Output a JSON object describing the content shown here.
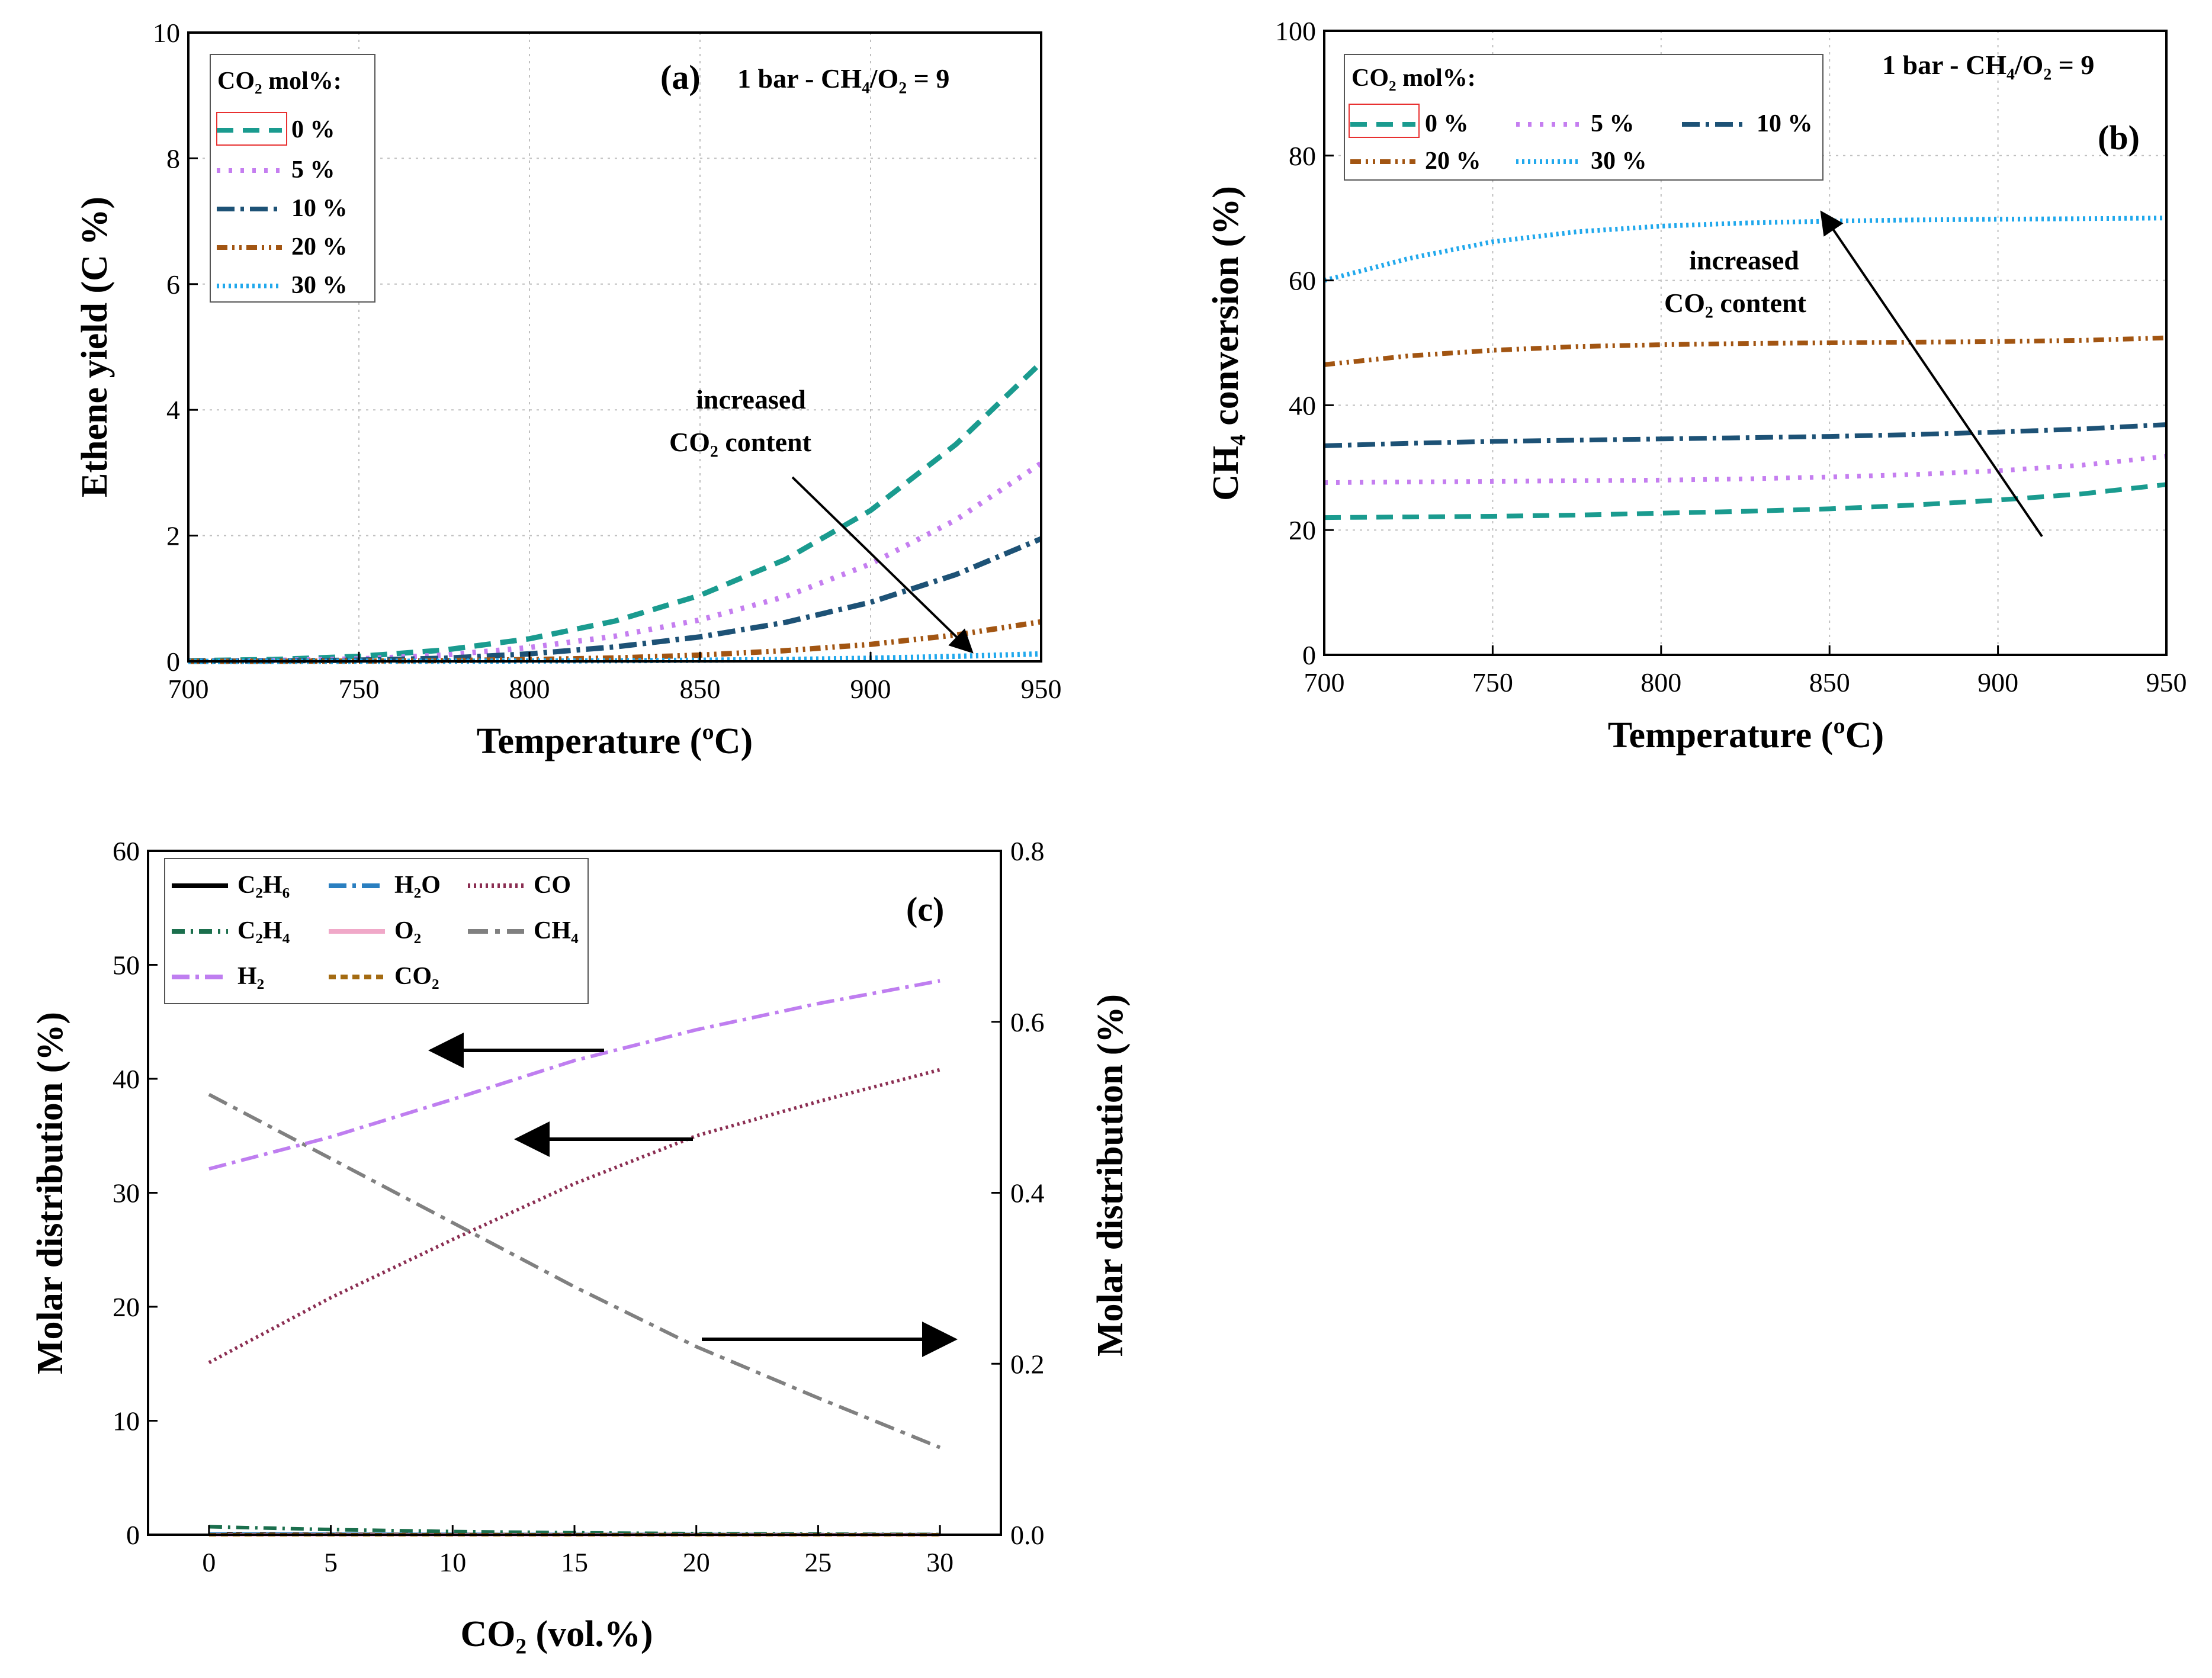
{
  "chart_data": [
    {
      "id": "a",
      "type": "line",
      "panel_label": "(a)",
      "condition": "1 bar - CH₄/O₂ = 9",
      "xlabel": "Temperature (ºC)",
      "ylabel": "Ethene yield (C %)",
      "xlim": [
        700,
        950
      ],
      "ylim": [
        0,
        10
      ],
      "xticks": [
        700,
        750,
        800,
        850,
        900,
        950
      ],
      "yticks": [
        0,
        2,
        4,
        6,
        8,
        10
      ],
      "grid": true,
      "legend_title": "CO₂ mol%:",
      "legend_position": "top-left",
      "annotation": [
        "increased",
        "CO₂ content"
      ],
      "x": [
        700,
        725,
        750,
        775,
        800,
        825,
        850,
        875,
        900,
        925,
        950
      ],
      "series": [
        {
          "name": "0 %",
          "color": "#1a9b8f",
          "dash": "28 16",
          "values": [
            0.01,
            0.03,
            0.08,
            0.18,
            0.36,
            0.64,
            1.05,
            1.62,
            2.4,
            3.45,
            4.75
          ]
        },
        {
          "name": "5 %",
          "color": "#c57ef0",
          "dash": "6 14",
          "values": [
            0.005,
            0.015,
            0.04,
            0.1,
            0.22,
            0.4,
            0.66,
            1.03,
            1.55,
            2.25,
            3.15
          ]
        },
        {
          "name": "10 %",
          "color": "#1d5276",
          "dash": "30 10 6 10",
          "values": [
            0.003,
            0.008,
            0.02,
            0.05,
            0.12,
            0.23,
            0.39,
            0.62,
            0.94,
            1.38,
            1.95
          ]
        },
        {
          "name": "20 %",
          "color": "#a25512",
          "dash": "18 8 4 8 4 8",
          "values": [
            0.001,
            0.002,
            0.005,
            0.012,
            0.028,
            0.055,
            0.1,
            0.17,
            0.27,
            0.42,
            0.63
          ]
        },
        {
          "name": "30 %",
          "color": "#20a8ec",
          "dash": "4 6",
          "values": [
            0.0,
            0.001,
            0.002,
            0.003,
            0.006,
            0.01,
            0.018,
            0.03,
            0.05,
            0.08,
            0.12
          ]
        }
      ]
    },
    {
      "id": "b",
      "type": "line",
      "panel_label": "(b)",
      "condition": "1 bar - CH₄/O₂ = 9",
      "xlabel": "Temperature (ºC)",
      "ylabel": "CH₄ conversion (%)",
      "xlim": [
        700,
        950
      ],
      "ylim": [
        0,
        100
      ],
      "xticks": [
        700,
        750,
        800,
        850,
        900,
        950
      ],
      "yticks": [
        0,
        20,
        40,
        60,
        80,
        100
      ],
      "grid": true,
      "legend_title": "CO₂ mol%:",
      "legend_position": "top-left",
      "annotation": [
        "increased",
        "CO₂ content"
      ],
      "x": [
        700,
        725,
        750,
        775,
        800,
        825,
        850,
        875,
        900,
        925,
        950
      ],
      "series": [
        {
          "name": "0 %",
          "color": "#1a9b8f",
          "dash": "28 16",
          "values": [
            22.0,
            22.1,
            22.2,
            22.4,
            22.7,
            23.0,
            23.4,
            24.0,
            24.8,
            25.8,
            27.3
          ]
        },
        {
          "name": "5 %",
          "color": "#c57ef0",
          "dash": "6 14",
          "values": [
            27.6,
            27.7,
            27.8,
            27.9,
            28.0,
            28.2,
            28.5,
            28.9,
            29.5,
            30.4,
            31.8
          ]
        },
        {
          "name": "10 %",
          "color": "#1d5276",
          "dash": "30 10 6 10",
          "values": [
            33.5,
            33.9,
            34.2,
            34.4,
            34.6,
            34.8,
            35.0,
            35.3,
            35.7,
            36.2,
            36.9
          ]
        },
        {
          "name": "20 %",
          "color": "#a25512",
          "dash": "18 8 4 8 4 8",
          "values": [
            46.5,
            47.9,
            48.8,
            49.4,
            49.7,
            49.9,
            50.0,
            50.1,
            50.2,
            50.4,
            50.8
          ]
        },
        {
          "name": "30 %",
          "color": "#20a8ec",
          "dash": "4 6",
          "values": [
            60.0,
            63.5,
            66.2,
            67.8,
            68.7,
            69.2,
            69.5,
            69.7,
            69.8,
            69.9,
            70.0
          ]
        }
      ]
    },
    {
      "id": "c",
      "type": "line",
      "panel_label": "(c)",
      "xlabel": "CO₂ (vol.%)",
      "ylabel": "Molar distribution (%)",
      "ylabel_right": "Molar distribution (%)",
      "xlim": [
        -2.5,
        32.5
      ],
      "ylim": [
        0,
        60
      ],
      "ylim_right": [
        0,
        0.8
      ],
      "xticks": [
        0,
        5,
        10,
        15,
        20,
        25,
        30
      ],
      "yticks": [
        0,
        10,
        20,
        30,
        40,
        50,
        60
      ],
      "yticks_right": [
        0.0,
        0.2,
        0.4,
        0.6,
        0.8
      ],
      "grid": false,
      "legend_position": "top-left",
      "x": [
        0,
        5,
        10,
        15,
        20,
        25,
        30
      ],
      "series": [
        {
          "name": "C₂H₆",
          "axis": "left",
          "color": "#000000",
          "dash": "",
          "values": [
            0.05,
            0.03,
            0.02,
            0.01,
            0.01,
            0.0,
            0.0
          ]
        },
        {
          "name": "H₂O",
          "axis": "left",
          "color": "#2a7fc0",
          "dash": "30 10 6 10",
          "values": [
            0.05,
            0.04,
            0.03,
            0.02,
            0.02,
            0.01,
            0.01
          ]
        },
        {
          "name": "CO",
          "axis": "left",
          "color": "#8b2e52",
          "dash": "4 6",
          "values": [
            15.1,
            20.8,
            25.9,
            30.8,
            35.0,
            38.0,
            40.8
          ]
        },
        {
          "name": "C₂H₄",
          "axis": "left",
          "color": "#1b6f4d",
          "dash": "22 10 4 10",
          "values": [
            0.7,
            0.45,
            0.28,
            0.17,
            0.1,
            0.05,
            0.02
          ]
        },
        {
          "name": "O₂",
          "axis": "left",
          "color": "#f0a8c8",
          "dash": "",
          "values": [
            0.0,
            0.0,
            0.0,
            0.0,
            0.0,
            0.0,
            0.0
          ]
        },
        {
          "name": "CH₄",
          "axis": "right",
          "color": "#808080",
          "dash": "34 12 8 12",
          "values": [
            0.515,
            0.44,
            0.365,
            0.29,
            0.22,
            0.16,
            0.102
          ]
        },
        {
          "name": "H₂",
          "axis": "left",
          "color": "#bf7ef0",
          "dash": "30 10 6 10",
          "values": [
            32.1,
            34.9,
            38.2,
            41.6,
            44.3,
            46.6,
            48.6
          ]
        },
        {
          "name": "CO₂",
          "axis": "left",
          "color": "#a46b12",
          "dash": "12 8",
          "values": [
            0.0,
            0.0,
            0.0,
            0.0,
            0.0,
            0.0,
            0.0
          ]
        }
      ]
    }
  ]
}
